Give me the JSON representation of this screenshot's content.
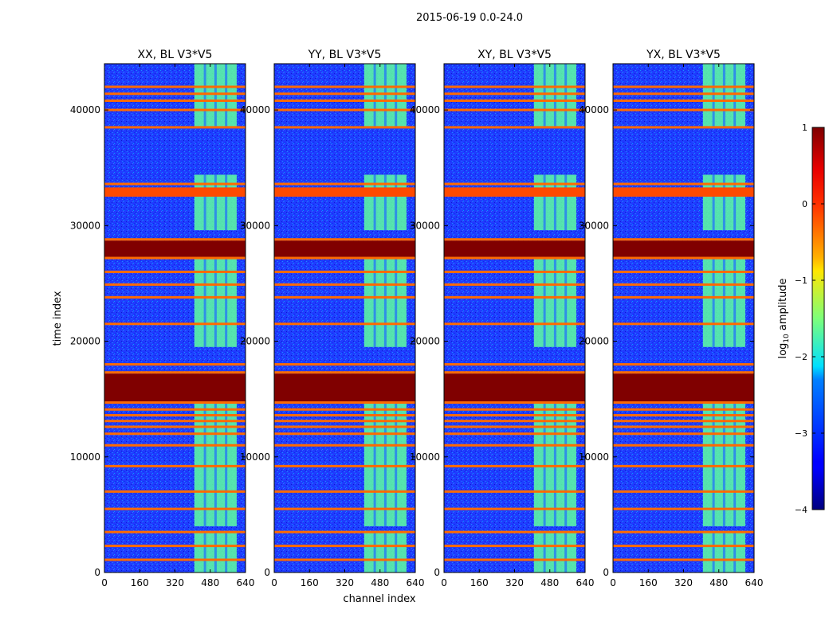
{
  "chart_data": {
    "type": "heatmap",
    "title": "2015-06-19 0.0-24.0",
    "xlabel": "channel index",
    "ylabel": "time index",
    "xlim": [
      0,
      640
    ],
    "ylim": [
      0,
      44000
    ],
    "xticks": [
      0,
      160,
      320,
      480,
      640
    ],
    "yticks": [
      0,
      10000,
      20000,
      30000,
      40000
    ],
    "colorbar": {
      "label": "log10 amplitude",
      "label_base": "log",
      "label_sub": "10",
      "label_rest": " amplitude",
      "range": [
        -4,
        1
      ],
      "ticks": [
        -4,
        -3,
        -2,
        -1,
        0,
        1
      ],
      "tick_labels": [
        "−4",
        "−3",
        "−2",
        "−1",
        "0",
        "1"
      ],
      "colormap": "jet"
    },
    "panels": [
      {
        "title": "XX, BL V3*V5",
        "name": "XX"
      },
      {
        "title": "YY, BL V3*V5",
        "name": "YY"
      },
      {
        "title": "XY, BL V3*V5",
        "name": "XY"
      },
      {
        "title": "YX, BL V3*V5",
        "name": "YX"
      }
    ],
    "structure": {
      "background_log_amplitude": -3.0,
      "saturated_time_bands": [
        [
          14800,
          17200
        ],
        [
          27300,
          28700
        ]
      ],
      "hot_time_band": [
        32500,
        33300
      ],
      "rfi_time_lines": [
        1100,
        2300,
        3500,
        5500,
        7000,
        9200,
        11000,
        12000,
        12600,
        13100,
        13600,
        14100,
        18000,
        21500,
        23800,
        24900,
        26000,
        33600,
        38500,
        40000,
        40800,
        41400,
        42000
      ],
      "active_channel_range": [
        408,
        600
      ],
      "active_time_segments": [
        [
          0,
          3600
        ],
        [
          4000,
          14800
        ],
        [
          19500,
          27100
        ],
        [
          29600,
          34400
        ],
        [
          38500,
          44000
        ]
      ]
    }
  },
  "colors": {
    "background_blue": "#1f3fff",
    "saturated": "#800000",
    "rfi_line": "#ff6a00",
    "active_band": "#5fffa0"
  }
}
